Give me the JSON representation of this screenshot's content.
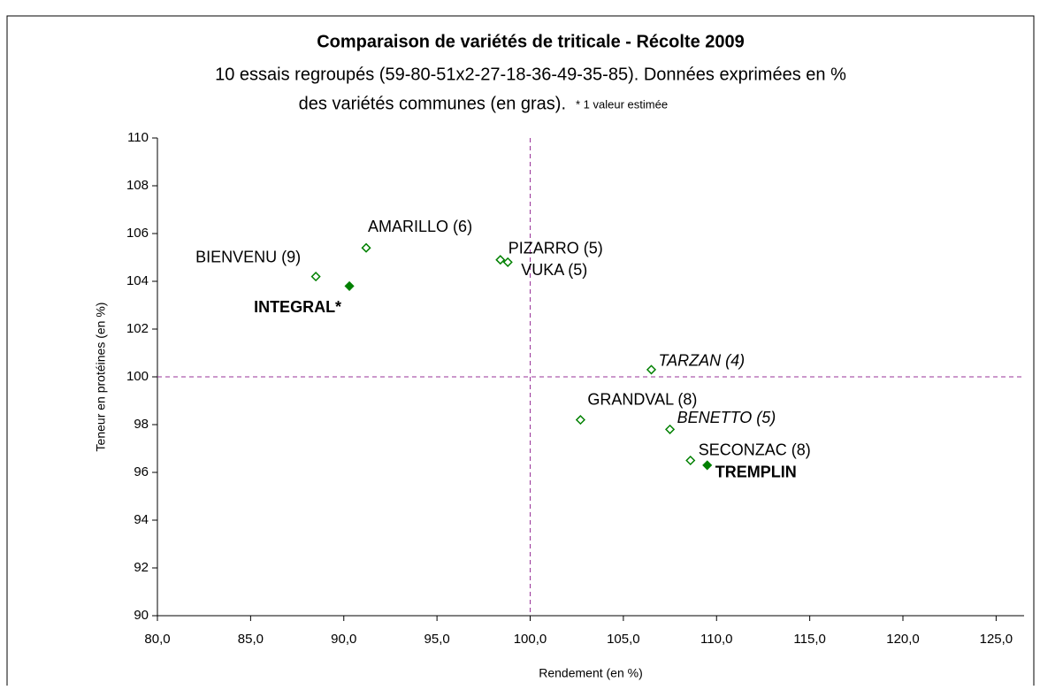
{
  "chart_data": {
    "type": "scatter",
    "title": "Comparaison de variétés de triticale - Récolte 2009",
    "subtitle_lines": [
      "10 essais regroupés (59-80-51x2-27-18-36-49-35-85). Données exprimées en %",
      "des variétés communes (en gras)."
    ],
    "note": "* 1 valeur estimée",
    "xlabel": "Rendement (en %)",
    "ylabel": "Teneur en protéines (en %)",
    "color": "#008000",
    "xlim": [
      80,
      126.5
    ],
    "ylim": [
      90,
      110
    ],
    "xticks": [
      {
        "value": 80,
        "label": "80,0"
      },
      {
        "value": 85,
        "label": "85,0"
      },
      {
        "value": 90,
        "label": "90,0"
      },
      {
        "value": 95,
        "label": "95,0"
      },
      {
        "value": 100,
        "label": "100,0"
      },
      {
        "value": 105,
        "label": "105,0"
      },
      {
        "value": 110,
        "label": "110,0"
      },
      {
        "value": 115,
        "label": "115,0"
      },
      {
        "value": 120,
        "label": "120,0"
      },
      {
        "value": 125,
        "label": "125,0"
      }
    ],
    "yticks": [
      90,
      92,
      94,
      96,
      98,
      100,
      102,
      104,
      106,
      108,
      110
    ],
    "reference_lines": {
      "x": 100,
      "y": 100
    },
    "points": [
      {
        "label": "BIENVENU (9)",
        "x": 88.5,
        "y": 104.2,
        "filled": false,
        "label_style": "normal"
      },
      {
        "label": "INTEGRAL*",
        "x": 90.3,
        "y": 103.8,
        "filled": true,
        "label_style": "bold"
      },
      {
        "label": "AMARILLO (6)",
        "x": 91.2,
        "y": 105.4,
        "filled": false,
        "label_style": "normal"
      },
      {
        "label": "PIZARRO (5)",
        "x": 98.4,
        "y": 104.9,
        "filled": false,
        "label_style": "normal"
      },
      {
        "label": "VUKA (5)",
        "x": 98.8,
        "y": 104.8,
        "filled": false,
        "label_style": "normal"
      },
      {
        "label": "TARZAN (4)",
        "x": 106.5,
        "y": 100.3,
        "filled": false,
        "label_style": "italic"
      },
      {
        "label": "GRANDVAL (8)",
        "x": 102.7,
        "y": 98.2,
        "filled": false,
        "label_style": "normal"
      },
      {
        "label": "BENETTO (5)",
        "x": 107.5,
        "y": 97.8,
        "filled": false,
        "label_style": "italic"
      },
      {
        "label": "SECONZAC (8)",
        "x": 108.6,
        "y": 96.5,
        "filled": false,
        "label_style": "normal"
      },
      {
        "label": "TREMPLIN",
        "x": 109.5,
        "y": 96.3,
        "filled": true,
        "label_style": "bold"
      }
    ]
  }
}
